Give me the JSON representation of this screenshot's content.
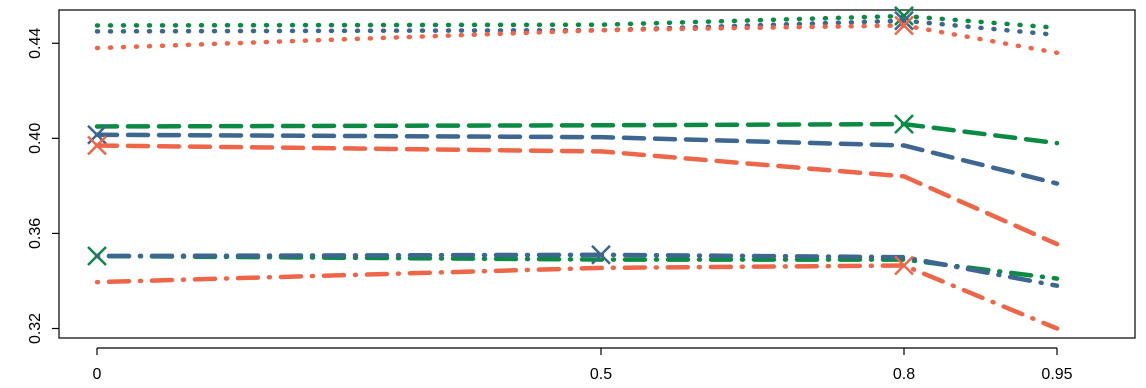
{
  "chart_data": {
    "type": "line",
    "title": "",
    "xlabel": "",
    "ylabel": "",
    "x": [
      0,
      0.5,
      0.8,
      0.95
    ],
    "x_tick_labels": [
      "0",
      "0.5",
      "0.8",
      "0.95"
    ],
    "y_ticks": [
      0.32,
      0.36,
      0.4,
      0.44
    ],
    "y_tick_labels": [
      "0.32",
      "0.36",
      "0.40",
      "0.44"
    ],
    "ylim": [
      0.316,
      0.454
    ],
    "grid": false,
    "colors": {
      "green": "#0a8a43",
      "blue": "#3d6690",
      "red": "#ef6548"
    },
    "groups": [
      {
        "line_style": "dotted",
        "series": [
          {
            "color": "#0a8a43",
            "values": [
              0.4475,
              0.4478,
              0.4515,
              0.4465
            ],
            "marker_at": 0.8
          },
          {
            "color": "#3d6690",
            "values": [
              0.445,
              0.4455,
              0.4495,
              0.4435
            ],
            "marker_at": 0.8
          },
          {
            "color": "#ef6548",
            "values": [
              0.438,
              0.4455,
              0.4475,
              0.436
            ],
            "marker_at": 0.8
          }
        ]
      },
      {
        "line_style": "dashed",
        "series": [
          {
            "color": "#0a8a43",
            "values": [
              0.405,
              0.4055,
              0.406,
              0.398
            ],
            "marker_at": 0.8
          },
          {
            "color": "#3d6690",
            "values": [
              0.4015,
              0.4005,
              0.397,
              0.381
            ],
            "marker_at": 0
          },
          {
            "color": "#ef6548",
            "values": [
              0.397,
              0.3945,
              0.384,
              0.3555
            ],
            "marker_at": 0
          }
        ]
      },
      {
        "line_style": "dot-dash",
        "series": [
          {
            "color": "#0a8a43",
            "values": [
              0.3505,
              0.349,
              0.349,
              0.341
            ],
            "marker_at": 0
          },
          {
            "color": "#3d6690",
            "values": [
              0.3505,
              0.351,
              0.35,
              0.338
            ],
            "marker_at": 0.5
          },
          {
            "color": "#ef6548",
            "values": [
              0.3395,
              0.3455,
              0.3465,
              0.32
            ],
            "marker_at": 0.8
          }
        ]
      }
    ]
  }
}
